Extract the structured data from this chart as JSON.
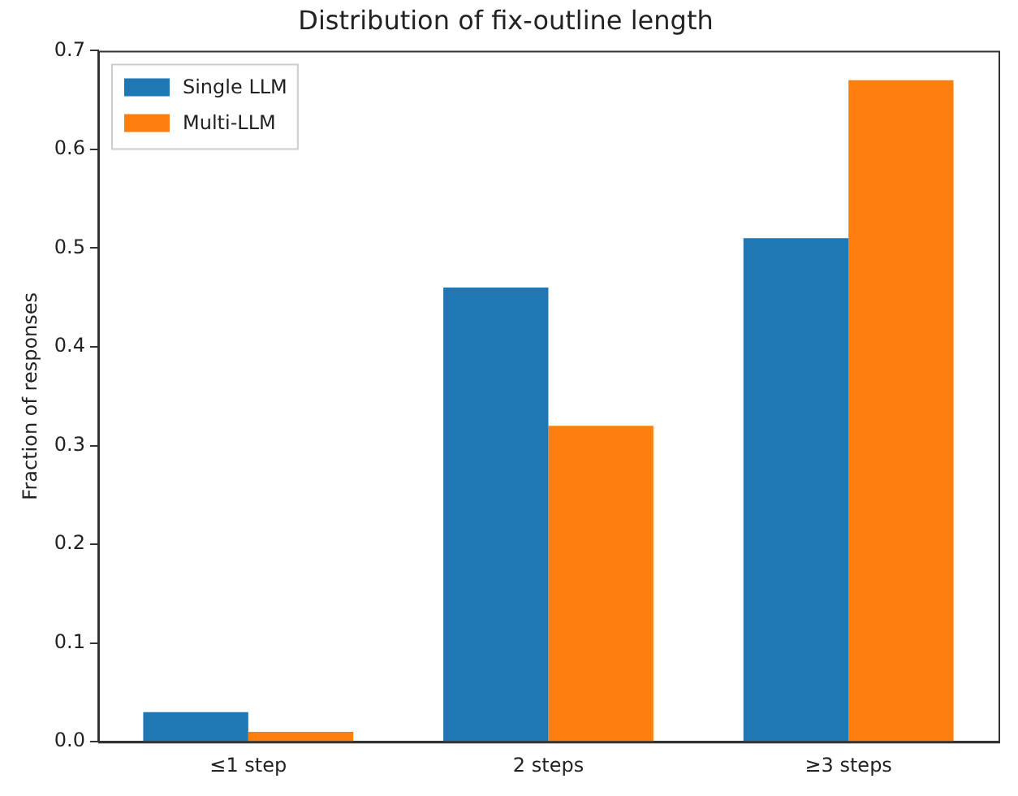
{
  "chart_data": {
    "type": "bar",
    "title": "Distribution of fix-outline length",
    "ylabel": "Fraction of responses",
    "categories": [
      "≤1 step",
      "2 steps",
      "≥3 steps"
    ],
    "series": [
      {
        "name": "Single LLM",
        "color": "#1f77b4",
        "values": [
          0.03,
          0.46,
          0.51
        ]
      },
      {
        "name": "Multi-LLM",
        "color": "#ff7f0e",
        "values": [
          0.01,
          0.32,
          0.67
        ]
      }
    ],
    "ylim": [
      0,
      0.7
    ],
    "yticks": [
      {
        "value": 0,
        "label": "0.0"
      },
      {
        "value": 0.1,
        "label": "0.1"
      },
      {
        "value": 0.2,
        "label": "0.2"
      },
      {
        "value": 0.3,
        "label": "0.3"
      },
      {
        "value": 0.4,
        "label": "0.4"
      },
      {
        "value": 0.5,
        "label": "0.5"
      },
      {
        "value": 0.6,
        "label": "0.6"
      },
      {
        "value": 0.7,
        "label": "0.7"
      }
    ],
    "grid": false,
    "legend": "top left"
  }
}
